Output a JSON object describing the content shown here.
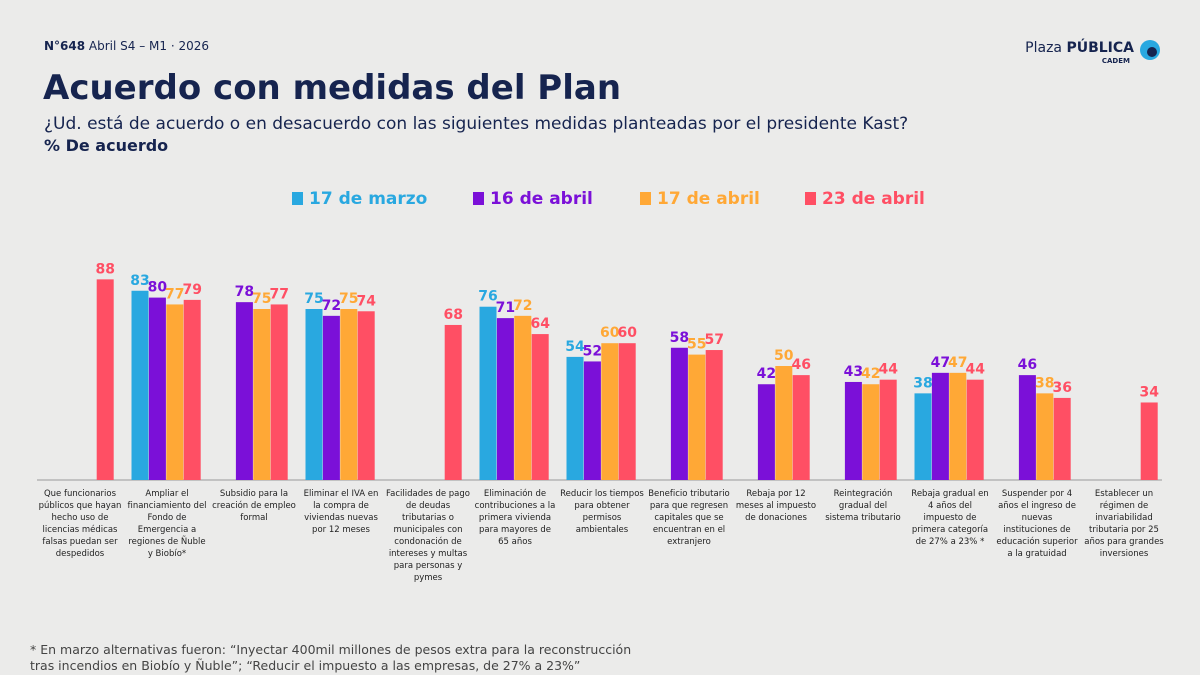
{
  "header": {
    "issue": "N°648",
    "period": "Abril S4 – M1 · 2026",
    "brand_light": "Plaza",
    "brand_bold": "PÚBLICA",
    "brand_sub": "CADEM"
  },
  "chart_data": {
    "type": "bar",
    "title": "Acuerdo con medidas del Plan",
    "subtitle": "¿Ud. está de acuerdo o en desacuerdo con las siguientes medidas planteadas por el presidente Kast?",
    "y_label": "% De acuerdo",
    "categories": [
      "Que funcionarios públicos que hayan hecho uso de licencias médicas falsas puedan ser despedidos",
      "Ampliar el financiamiento del Fondo de Emergencia a regiones de Ñuble y Biobío*",
      "Subsidio para la creación de empleo formal",
      "Eliminar el IVA en la compra de viviendas nuevas por 12 meses",
      "Facilidades de pago de deudas tributarias o municipales con condonación de intereses y multas para personas y pymes",
      "Eliminación de contribuciones a la primera vivienda para mayores de 65 años",
      "Reducir los tiempos para obtener permisos ambientales",
      "Beneficio tributario para que regresen capitales que se encuentran en el extranjero",
      "Rebaja por 12 meses al impuesto de donaciones",
      "Reintegración gradual del sistema tributario",
      "Rebaja gradual en 4 años del impuesto de primera categoría de 27% a 23% *",
      "Suspender por 4 años el ingreso de nuevas instituciones de educación superior a la gratuidad",
      "Establecer un régimen de invariabilidad tributaria por 25 años para grandes inversiones"
    ],
    "series": [
      {
        "name": "17 de marzo",
        "color": "#29a8e0",
        "values": [
          null,
          83,
          null,
          75,
          null,
          76,
          54,
          null,
          null,
          null,
          38,
          null,
          null
        ]
      },
      {
        "name": "16 de abril",
        "color": "#7b10d8",
        "values": [
          null,
          80,
          78,
          72,
          null,
          71,
          52,
          58,
          42,
          43,
          47,
          46,
          null
        ]
      },
      {
        "name": "17 de abril",
        "color": "#ffa836",
        "values": [
          null,
          77,
          75,
          75,
          null,
          72,
          60,
          55,
          50,
          42,
          47,
          38,
          null
        ]
      },
      {
        "name": "23 de abril",
        "color": "#ff4f64",
        "values": [
          88,
          79,
          77,
          74,
          68,
          64,
          60,
          57,
          46,
          44,
          44,
          36,
          34
        ]
      }
    ],
    "ylim": [
      0,
      100
    ]
  },
  "footnote": "* En marzo alternativas fueron: “Inyectar 400mil millones de pesos extra para la reconstrucción tras incendios en Biobío y Ñuble”; “Reducir el impuesto a las empresas, de 27% a 23%”"
}
